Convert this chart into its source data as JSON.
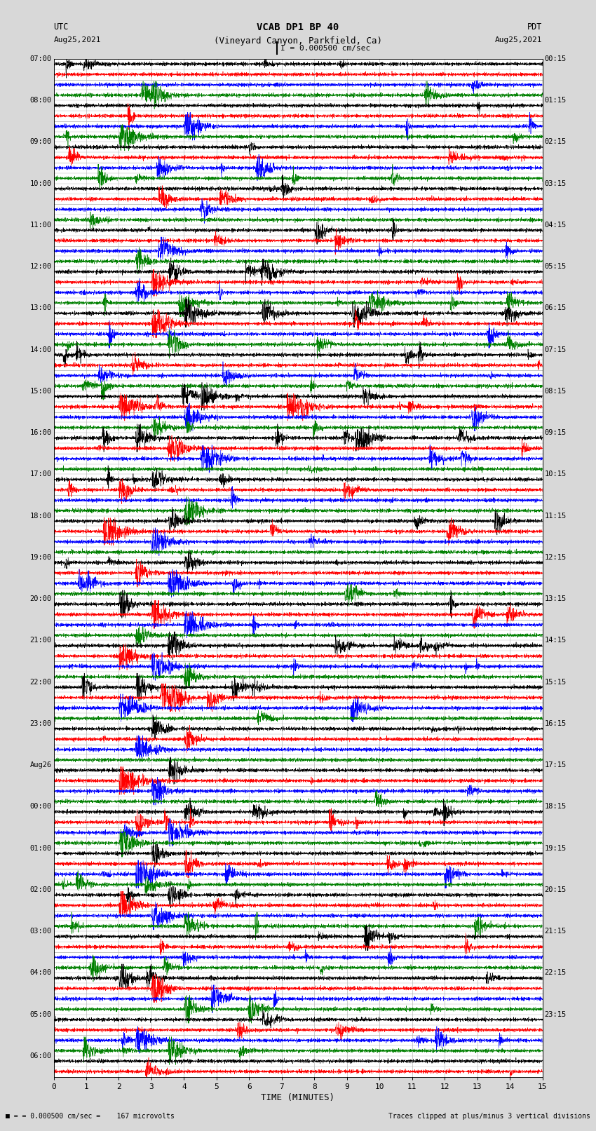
{
  "title_line1": "VCAB DP1 BP 40",
  "title_line2": "(Vineyard Canyon, Parkfield, Ca)",
  "scale_text": "I = 0.000500 cm/sec",
  "left_label_top": "UTC",
  "left_label_date": "Aug25,2021",
  "right_label_top": "PDT",
  "right_label_date": "Aug25,2021",
  "bottom_label": "TIME (MINUTES)",
  "bottom_note_left": "= 0.000500 cm/sec =    167 microvolts",
  "bottom_note_right": "Traces clipped at plus/minus 3 vertical divisions",
  "xlabel_ticks": [
    0,
    1,
    2,
    3,
    4,
    5,
    6,
    7,
    8,
    9,
    10,
    11,
    12,
    13,
    14,
    15
  ],
  "utc_labels": [
    "07:00",
    "08:00",
    "09:00",
    "10:00",
    "11:00",
    "12:00",
    "13:00",
    "14:00",
    "15:00",
    "16:00",
    "17:00",
    "18:00",
    "19:00",
    "20:00",
    "21:00",
    "22:00",
    "23:00",
    "Aug26",
    "00:00",
    "01:00",
    "02:00",
    "03:00",
    "04:00",
    "05:00",
    "06:00"
  ],
  "pdt_labels": [
    "00:15",
    "01:15",
    "02:15",
    "03:15",
    "04:15",
    "05:15",
    "06:15",
    "07:15",
    "08:15",
    "09:15",
    "10:15",
    "11:15",
    "12:15",
    "13:15",
    "14:15",
    "15:15",
    "16:15",
    "17:15",
    "18:15",
    "19:15",
    "20:15",
    "21:15",
    "22:15",
    "23:15"
  ],
  "colors": [
    "black",
    "red",
    "blue",
    "green"
  ],
  "bg_color": "#d8d8d8",
  "plot_bg": "white",
  "n_rows": 98,
  "minutes": 15,
  "seed": 42
}
